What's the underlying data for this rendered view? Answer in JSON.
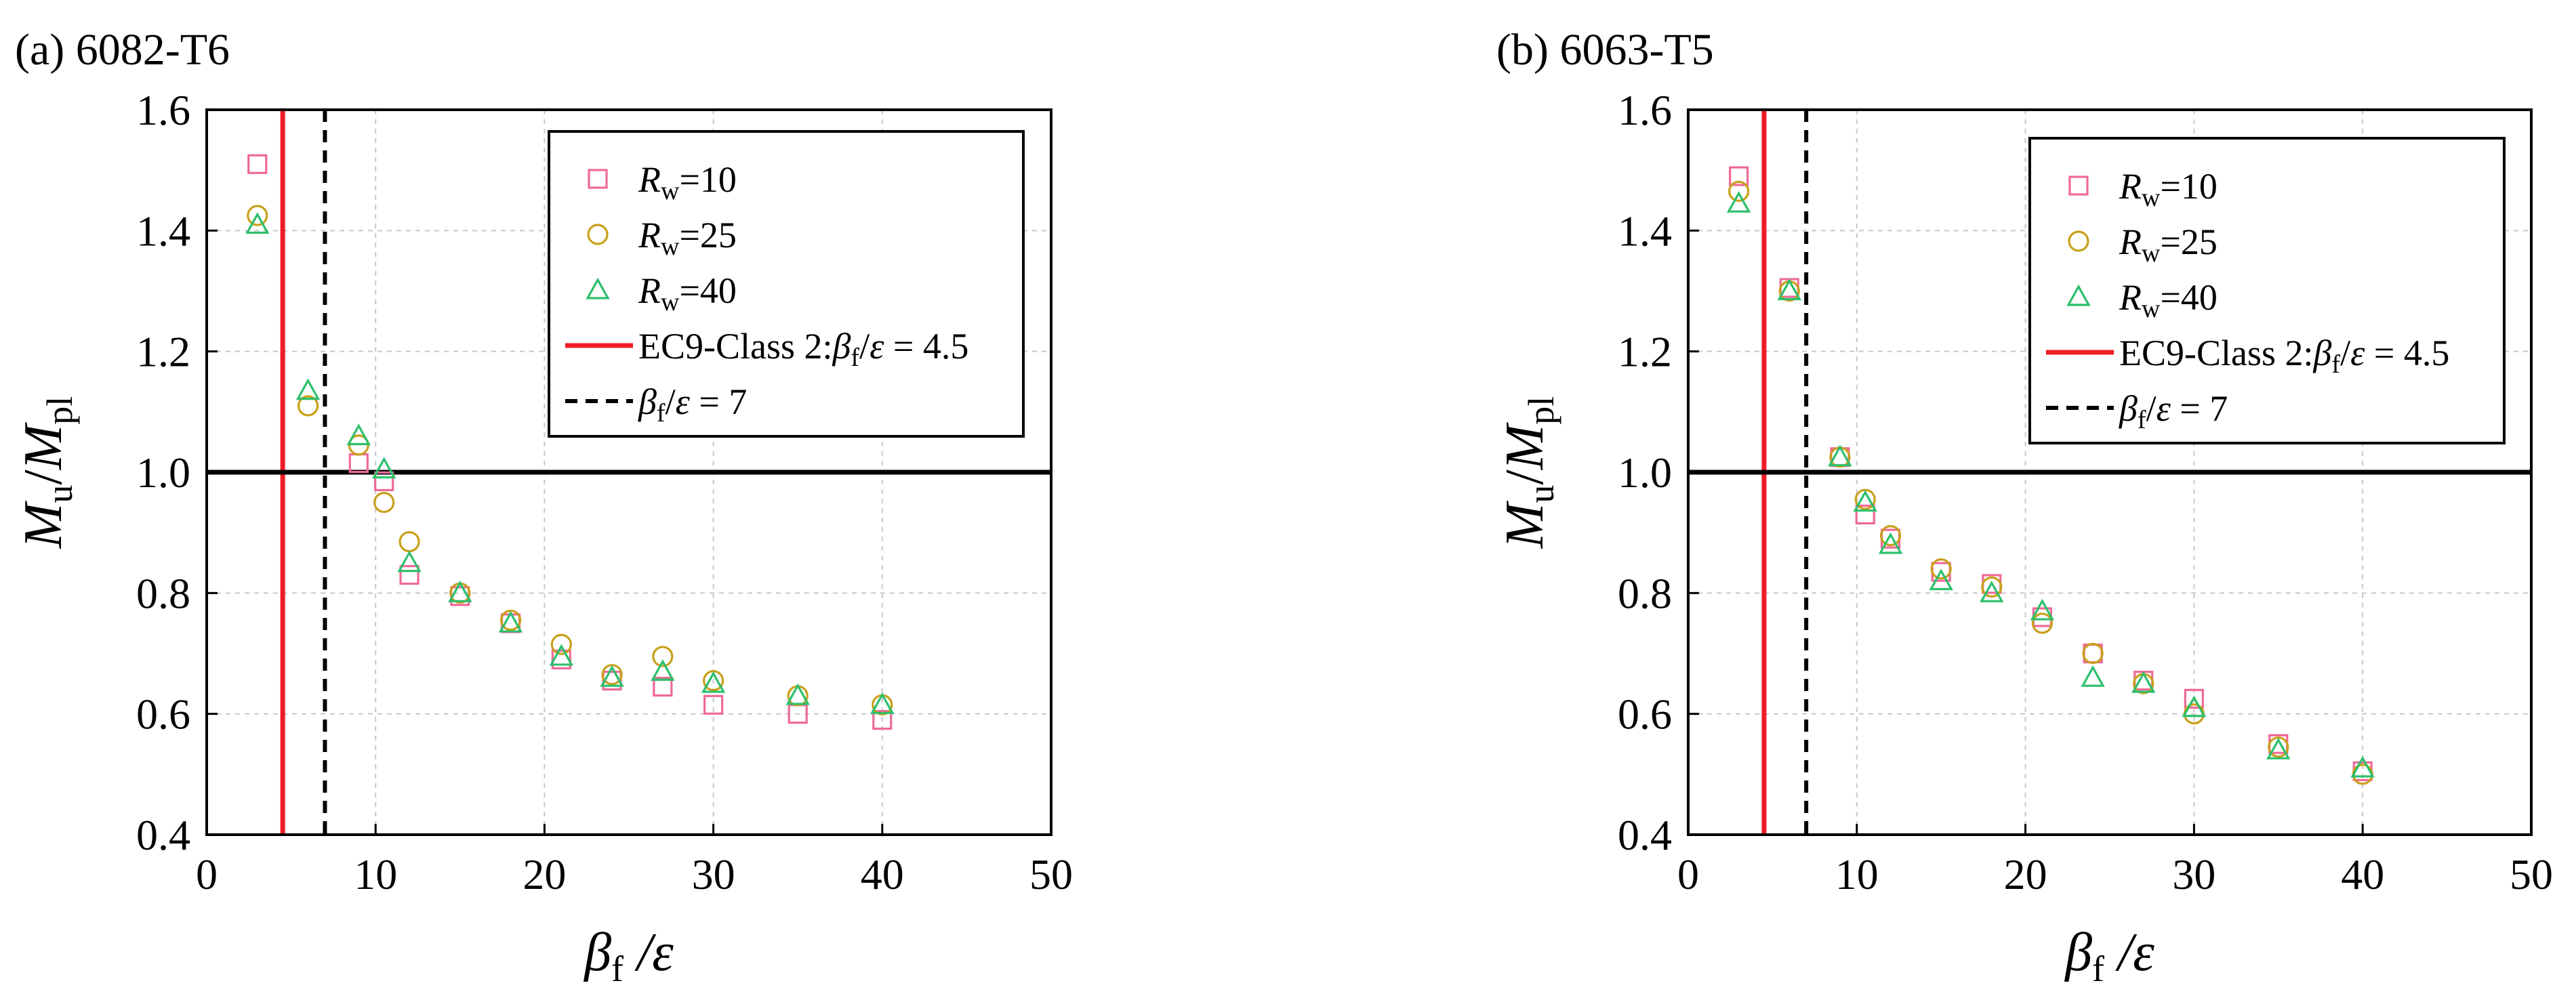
{
  "chart_data": [
    {
      "type": "scatter",
      "title": "(a) 6082-T6",
      "xlabel": {
        "main": "β",
        "sub": "f",
        "rest": " /ε"
      },
      "ylabel": {
        "m1": "M",
        "s1": "u",
        "slash": "/",
        "m2": "M",
        "s2": "pl"
      },
      "xlim": [
        0,
        50
      ],
      "ylim": [
        0.4,
        1.6
      ],
      "xticks": [
        "0",
        "10",
        "20",
        "30",
        "40",
        "50"
      ],
      "yticks": [
        "0.4",
        "0.6",
        "0.8",
        "1.0",
        "1.2",
        "1.4",
        "1.6"
      ],
      "grid": true,
      "legend_position": "top-right",
      "series": [
        {
          "name": "Rw=10",
          "label": {
            "v": "R",
            "sub": "w",
            "rest": "=10"
          },
          "marker": "square",
          "color": "#ee6a97",
          "x": [
            3,
            9,
            10.5,
            12,
            15,
            18,
            21,
            24,
            27,
            30,
            35,
            40
          ],
          "y": [
            1.51,
            1.015,
            0.985,
            0.83,
            0.795,
            0.75,
            0.69,
            0.655,
            0.645,
            0.615,
            0.6,
            0.59
          ]
        },
        {
          "name": "Rw=25",
          "label": {
            "v": "R",
            "sub": "w",
            "rest": "=25"
          },
          "marker": "circle",
          "color": "#c8a01a",
          "x": [
            3,
            6,
            9,
            10.5,
            12,
            15,
            18,
            21,
            24,
            27,
            30,
            35,
            40
          ],
          "y": [
            1.425,
            1.11,
            1.045,
            0.95,
            0.885,
            0.8,
            0.755,
            0.715,
            0.665,
            0.695,
            0.655,
            0.63,
            0.615
          ]
        },
        {
          "name": "Rw=40",
          "label": {
            "v": "R",
            "sub": "w",
            "rest": "=40"
          },
          "marker": "triangle",
          "color": "#2dbf6c",
          "x": [
            3,
            6,
            9,
            10.5,
            12,
            15,
            18,
            21,
            24,
            27,
            30,
            35,
            40
          ],
          "y": [
            1.41,
            1.135,
            1.06,
            1.005,
            0.85,
            0.8,
            0.75,
            0.695,
            0.66,
            0.67,
            0.65,
            0.63,
            0.615
          ]
        }
      ],
      "reference_lines": [
        {
          "orientation": "vertical",
          "x": 4.5,
          "style": "solid",
          "color": "#ee1c25",
          "label": {
            "lead": "EC9-Class 2:",
            "v": "β",
            "sub": "f",
            "rest": "/ε = 4.5"
          }
        },
        {
          "orientation": "vertical",
          "x": 7,
          "style": "dashed",
          "color": "#000000",
          "label": {
            "lead": "",
            "v": "β",
            "sub": "f",
            "rest": "/ε = 7"
          }
        },
        {
          "orientation": "horizontal",
          "y": 1.0,
          "style": "solid",
          "color": "#000000"
        }
      ]
    },
    {
      "type": "scatter",
      "title": "(b) 6063-T5",
      "xlabel": {
        "main": "β",
        "sub": "f",
        "rest": " /ε"
      },
      "ylabel": {
        "m1": "M",
        "s1": "u",
        "slash": "/",
        "m2": "M",
        "s2": "pl"
      },
      "xlim": [
        0,
        50
      ],
      "ylim": [
        0.4,
        1.6
      ],
      "xticks": [
        "0",
        "10",
        "20",
        "30",
        "40",
        "50"
      ],
      "yticks": [
        "0.4",
        "0.6",
        "0.8",
        "1.0",
        "1.2",
        "1.4",
        "1.6"
      ],
      "grid": true,
      "legend_position": "top-right",
      "series": [
        {
          "name": "Rw=10",
          "label": {
            "v": "R",
            "sub": "w",
            "rest": "=10"
          },
          "marker": "square",
          "color": "#ee6a97",
          "x": [
            3,
            6,
            9,
            10.5,
            12,
            15,
            18,
            21,
            24,
            27,
            30,
            35,
            40
          ],
          "y": [
            1.49,
            1.305,
            1.025,
            0.93,
            0.89,
            0.835,
            0.815,
            0.76,
            0.7,
            0.655,
            0.625,
            0.55,
            0.505
          ]
        },
        {
          "name": "Rw=25",
          "label": {
            "v": "R",
            "sub": "w",
            "rest": "=25"
          },
          "marker": "circle",
          "color": "#c8a01a",
          "x": [
            3,
            6,
            9,
            10.5,
            12,
            15,
            18,
            21,
            24,
            27,
            30,
            35,
            40
          ],
          "y": [
            1.465,
            1.3,
            1.025,
            0.955,
            0.895,
            0.84,
            0.81,
            0.75,
            0.7,
            0.65,
            0.6,
            0.545,
            0.5
          ]
        },
        {
          "name": "Rw=40",
          "label": {
            "v": "R",
            "sub": "w",
            "rest": "=40"
          },
          "marker": "triangle",
          "color": "#2dbf6c",
          "x": [
            3,
            6,
            9,
            10.5,
            12,
            15,
            18,
            21,
            24,
            27,
            30,
            35,
            40
          ],
          "y": [
            1.445,
            1.3,
            1.025,
            0.95,
            0.88,
            0.82,
            0.8,
            0.77,
            0.66,
            0.65,
            0.61,
            0.54,
            0.51
          ]
        }
      ],
      "reference_lines": [
        {
          "orientation": "vertical",
          "x": 4.5,
          "style": "solid",
          "color": "#ee1c25",
          "label": {
            "lead": "EC9-Class 2:",
            "v": "β",
            "sub": "f",
            "rest": "/ε = 4.5"
          }
        },
        {
          "orientation": "vertical",
          "x": 7,
          "style": "dashed",
          "color": "#000000",
          "label": {
            "lead": "",
            "v": "β",
            "sub": "f",
            "rest": "/ε = 7"
          }
        },
        {
          "orientation": "horizontal",
          "y": 1.0,
          "style": "solid",
          "color": "#000000"
        }
      ]
    }
  ]
}
